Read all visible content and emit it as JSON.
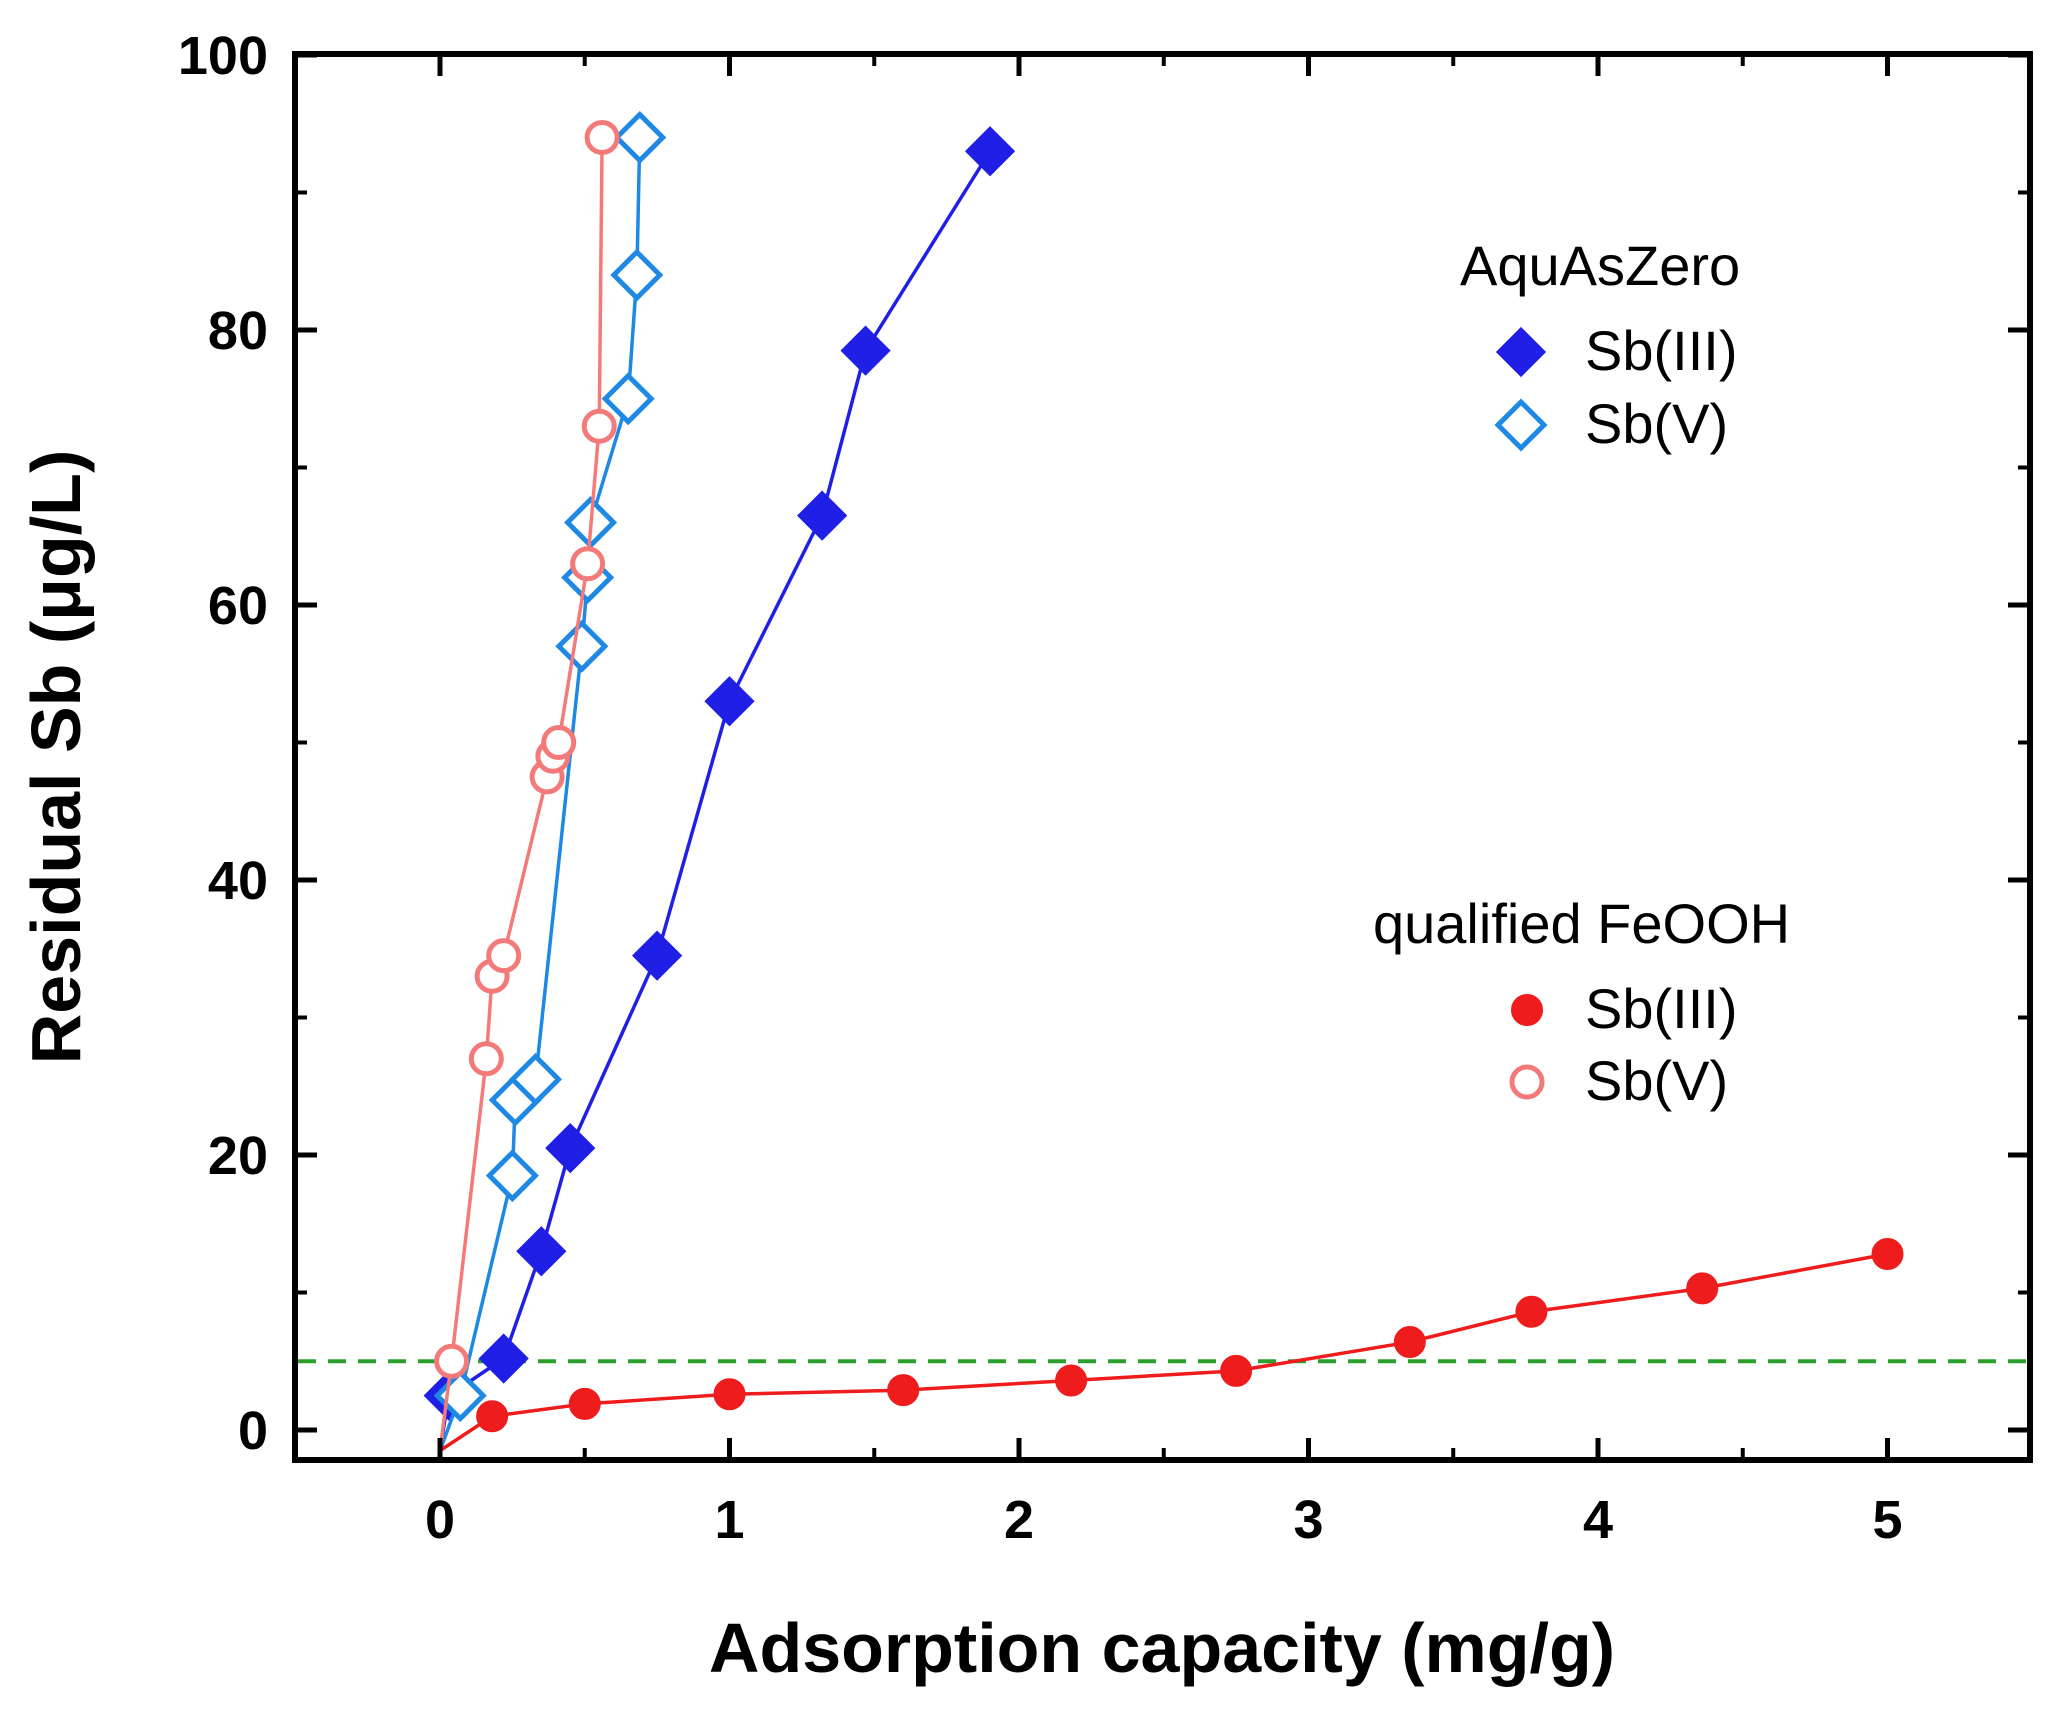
{
  "chart_data": {
    "type": "line",
    "xlabel": "Adsorption capacity (mg/g)",
    "ylabel": "Residual Sb (μg/L)",
    "xlim": [
      -0.5,
      5.5
    ],
    "ylim": [
      -3,
      100
    ],
    "xticks": [
      0,
      1,
      2,
      3,
      4,
      5
    ],
    "yticks": [
      0,
      20,
      40,
      60,
      80,
      100
    ],
    "grid": false,
    "reference_line": {
      "y": 5,
      "style": "dashed",
      "color": "#2ca02c"
    },
    "legend_groups": [
      {
        "title": "AquAsZero",
        "position": "top-right"
      },
      {
        "title": "qualified FeOOH",
        "position": "right"
      }
    ],
    "series": [
      {
        "name": "Sb(III)",
        "group": "AquAsZero",
        "marker": "diamond-filled",
        "color": "#1f1fe6",
        "x": [
          0.03,
          0.22,
          0.35,
          0.45,
          0.75,
          1.0,
          1.32,
          1.47,
          1.9
        ],
        "y": [
          2.5,
          5.2,
          13,
          20.5,
          34.5,
          53,
          66.5,
          78.5,
          93
        ]
      },
      {
        "name": "Sb(V)",
        "group": "AquAsZero",
        "marker": "diamond-open",
        "color": "#1e88e5",
        "x": [
          0.07,
          0.25,
          0.26,
          0.33,
          0.49,
          0.51,
          0.52,
          0.65,
          0.68,
          0.69
        ],
        "y": [
          2.5,
          18.5,
          24,
          25.5,
          57,
          62,
          66,
          75,
          84,
          94
        ]
      },
      {
        "name": "Sb(III)",
        "group": "qualified FeOOH",
        "marker": "circle-filled",
        "color": "#ee1c1c",
        "x": [
          0.18,
          0.5,
          1.0,
          1.6,
          2.18,
          2.75,
          3.35,
          3.77,
          4.36,
          5.0
        ],
        "y": [
          1.0,
          1.9,
          2.6,
          2.9,
          3.6,
          4.3,
          6.4,
          8.6,
          10.3,
          12.8
        ]
      },
      {
        "name": "Sb(V)",
        "group": "qualified FeOOH",
        "marker": "circle-open",
        "color": "#f47a7a",
        "x": [
          0.04,
          0.16,
          0.18,
          0.22,
          0.37,
          0.39,
          0.41,
          0.51,
          0.55,
          0.56
        ],
        "y": [
          5.0,
          27,
          33,
          34.5,
          47.5,
          49,
          50,
          63,
          73,
          94
        ]
      }
    ]
  }
}
